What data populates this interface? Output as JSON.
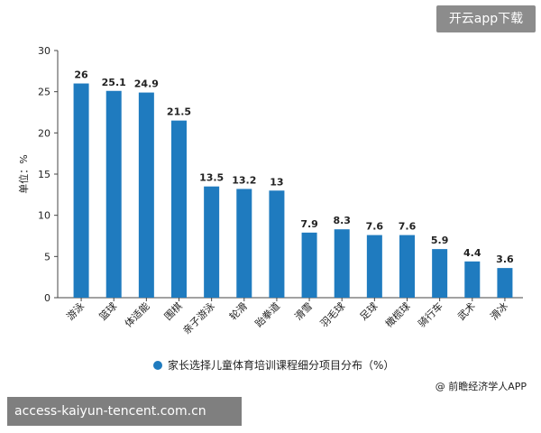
{
  "app_button": "开云app下载",
  "url_text": "access-kaiyun-tencent.com.cn",
  "source_text": "@ 前瞻经济学人APP",
  "colors": {
    "bar": "#1f7bbf",
    "axis": "#444444",
    "text": "#222222"
  },
  "chart_data": {
    "type": "bar",
    "title": "",
    "ylabel": "单位：%",
    "xlabel": "",
    "ylim": [
      0,
      30
    ],
    "yticks": [
      0,
      5,
      10,
      15,
      20,
      25,
      30
    ],
    "grid": false,
    "legend_position": "bottom",
    "categories": [
      "游泳",
      "篮球",
      "体适能",
      "围棋",
      "亲子游泳",
      "轮滑",
      "跆拳道",
      "滑雪",
      "羽毛球",
      "足球",
      "橄榄球",
      "骑行车",
      "武术",
      "滑冰"
    ],
    "series": [
      {
        "name": "家长选择儿童体育培训课程细分项目分布（%）",
        "values": [
          26,
          25.1,
          24.9,
          21.5,
          13.5,
          13.2,
          13,
          7.9,
          8.3,
          7.6,
          7.6,
          5.9,
          4.4,
          3.6
        ]
      }
    ]
  }
}
